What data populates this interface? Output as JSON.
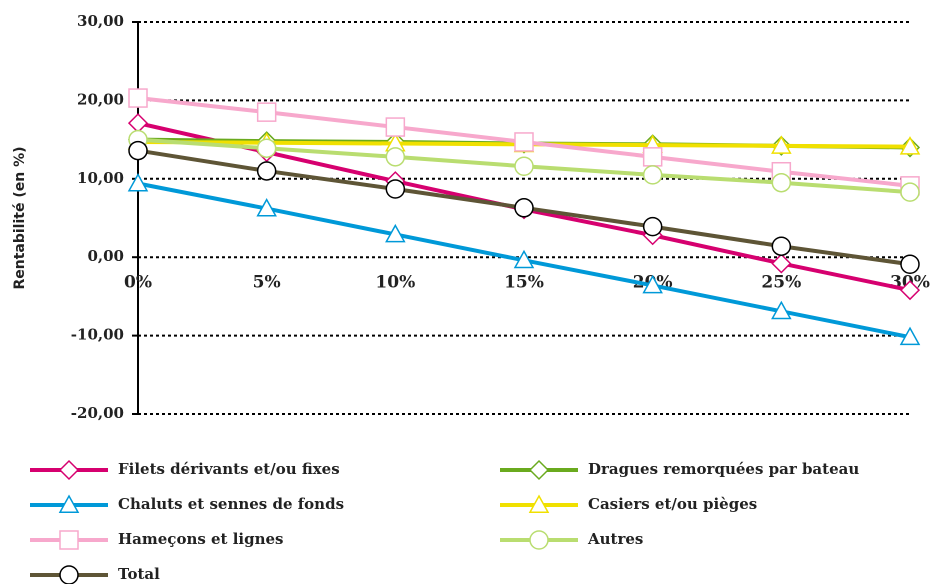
{
  "chart_data": {
    "type": "line",
    "y_label": "Rentabilité (en %)",
    "categories": [
      "0%",
      "5%",
      "10%",
      "15%",
      "20%",
      "25%",
      "30%"
    ],
    "ylim": [
      -20,
      30
    ],
    "yticks": [
      {
        "value": -20,
        "label": "-20,00"
      },
      {
        "value": -10,
        "label": "-10,00"
      },
      {
        "value": 0,
        "label": "0,00"
      },
      {
        "value": 10,
        "label": "10,00"
      },
      {
        "value": 20,
        "label": "20,00"
      },
      {
        "value": 30,
        "label": "30,00"
      }
    ],
    "grid": true,
    "series": [
      {
        "name": "Filets dérivants et/ou fixes",
        "color": "#d6006f",
        "marker": "diamond",
        "values": [
          17.1,
          13.4,
          9.7,
          6.1,
          2.8,
          -0.8,
          -4.2
        ]
      },
      {
        "name": "Dragues remorquées par bateau",
        "color": "#6aaa1e",
        "marker": "diamond",
        "values": [
          15.0,
          14.8,
          14.7,
          14.5,
          14.4,
          14.2,
          14.0
        ]
      },
      {
        "name": "Chaluts et sennes de fonds",
        "color": "#0099d8",
        "marker": "triangle",
        "values": [
          9.4,
          6.2,
          2.9,
          -0.4,
          -3.6,
          -6.9,
          -10.2
        ]
      },
      {
        "name": "Casiers et/ou pièges",
        "color": "#f0e000",
        "marker": "triangle",
        "values": [
          14.7,
          14.6,
          14.5,
          14.4,
          14.3,
          14.2,
          14.1
        ]
      },
      {
        "name": "Hameçons et lignes",
        "color": "#f7a8cc",
        "marker": "square",
        "values": [
          20.3,
          18.5,
          16.6,
          14.7,
          12.8,
          10.9,
          9.1
        ]
      },
      {
        "name": "Autres",
        "color": "#b9dd70",
        "marker": "circle",
        "values": [
          15.0,
          13.9,
          12.8,
          11.6,
          10.5,
          9.5,
          8.3
        ]
      },
      {
        "name": "Total",
        "color": "#5e5536",
        "marker": "circle",
        "values": [
          13.6,
          11.0,
          8.7,
          6.3,
          3.9,
          1.4,
          -0.9
        ]
      }
    ]
  }
}
